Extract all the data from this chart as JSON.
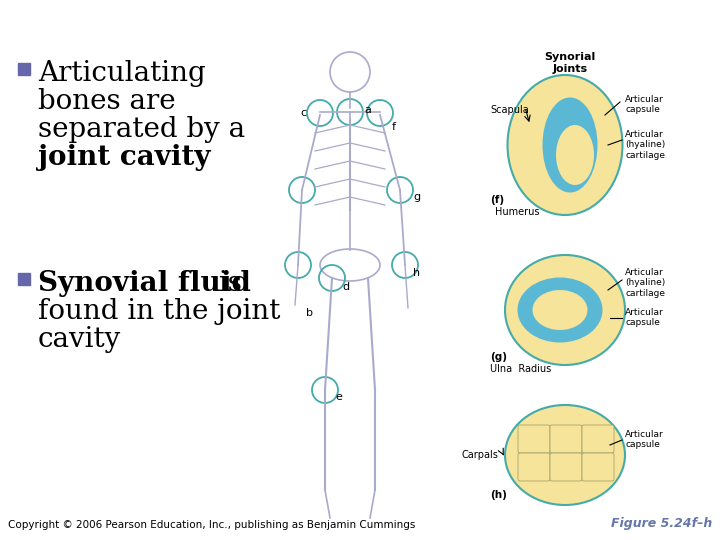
{
  "background_color": "#ffffff",
  "bullet_color": "#6666aa",
  "bullet1_line1": "Articulating",
  "bullet1_line2": "bones are",
  "bullet1_line3": "separated by a",
  "bullet1_line4_bold": "joint cavity",
  "bullet2_bold": "Synovial fluid",
  "bullet2_normal_suffix": " is",
  "bullet2_line2": "found in the joint",
  "bullet2_line3": "cavity",
  "copyright": "Copyright © 2006 Pearson Education, Inc., publishing as Benjamin Cummings",
  "figure_label": "Figure 5.24f–h",
  "figure_label_color": "#6677aa",
  "font_size_bullet": 20,
  "font_size_copyright": 7.5,
  "font_size_figure": 9,
  "synorial_title": "Synorial\nJoints",
  "scapula_label": "Scapula",
  "humerus_label": "Humerus",
  "f_label": "(f)",
  "g_label": "(g)",
  "h_label": "(h)",
  "ulna_radius_label": "Ulna  Radius",
  "carpals_label": "Carpals",
  "art_capsule": "Articular\ncapsule",
  "art_hyaline": "Articular\n(hyaline)\ncartilage",
  "art_capsule2": "Articular\ncapsule",
  "art_hyaline2": "Articular\n(hyaline)\ncartilage",
  "art_capsule3": "Articular\ncapsule",
  "yellow_color": "#f5e49a",
  "blue_color": "#5ab8d5",
  "teal_color": "#44aaaa",
  "skeleton_color": "#aaaacc",
  "label_color": "#000000"
}
